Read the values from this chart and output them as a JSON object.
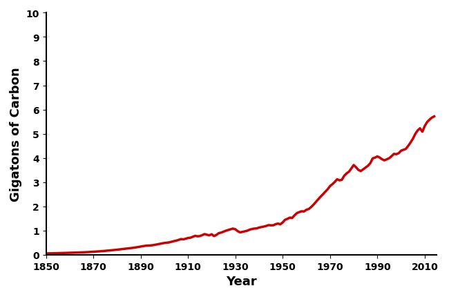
{
  "xlabel": "Year",
  "ylabel": "Gigatons of Carbon",
  "line_color": "#cc0000",
  "line_width": 2.5,
  "xlim": [
    1850,
    2015
  ],
  "ylim": [
    0,
    10
  ],
  "xticks": [
    1850,
    1870,
    1890,
    1910,
    1930,
    1950,
    1970,
    1990,
    2010
  ],
  "yticks": [
    0,
    1,
    2,
    3,
    4,
    5,
    6,
    7,
    8,
    9,
    10
  ],
  "years": [
    1850,
    1851,
    1852,
    1853,
    1854,
    1855,
    1856,
    1857,
    1858,
    1859,
    1860,
    1861,
    1862,
    1863,
    1864,
    1865,
    1866,
    1867,
    1868,
    1869,
    1870,
    1871,
    1872,
    1873,
    1874,
    1875,
    1876,
    1877,
    1878,
    1879,
    1880,
    1881,
    1882,
    1883,
    1884,
    1885,
    1886,
    1887,
    1888,
    1889,
    1890,
    1891,
    1892,
    1893,
    1894,
    1895,
    1896,
    1897,
    1898,
    1899,
    1900,
    1901,
    1902,
    1903,
    1904,
    1905,
    1906,
    1907,
    1908,
    1909,
    1910,
    1911,
    1912,
    1913,
    1914,
    1915,
    1916,
    1917,
    1918,
    1919,
    1920,
    1921,
    1922,
    1923,
    1924,
    1925,
    1926,
    1927,
    1928,
    1929,
    1930,
    1931,
    1932,
    1933,
    1934,
    1935,
    1936,
    1937,
    1938,
    1939,
    1940,
    1941,
    1942,
    1943,
    1944,
    1945,
    1946,
    1947,
    1948,
    1949,
    1950,
    1951,
    1952,
    1953,
    1954,
    1955,
    1956,
    1957,
    1958,
    1959,
    1960,
    1961,
    1962,
    1963,
    1964,
    1965,
    1966,
    1967,
    1968,
    1969,
    1970,
    1971,
    1972,
    1973,
    1974,
    1975,
    1976,
    1977,
    1978,
    1979,
    1980,
    1981,
    1982,
    1983,
    1984,
    1985,
    1986,
    1987,
    1988,
    1989,
    1990,
    1991,
    1992,
    1993,
    1994,
    1995,
    1996,
    1997,
    1998,
    1999,
    2000,
    2001,
    2002,
    2003,
    2004,
    2005,
    2006,
    2007,
    2008,
    2009,
    2010,
    2011,
    2012,
    2013,
    2014
  ],
  "emissions": [
    0.054,
    0.057,
    0.059,
    0.061,
    0.063,
    0.065,
    0.068,
    0.071,
    0.074,
    0.077,
    0.081,
    0.084,
    0.087,
    0.09,
    0.094,
    0.098,
    0.102,
    0.107,
    0.112,
    0.118,
    0.123,
    0.13,
    0.137,
    0.144,
    0.152,
    0.161,
    0.17,
    0.179,
    0.188,
    0.198,
    0.209,
    0.22,
    0.232,
    0.244,
    0.255,
    0.264,
    0.275,
    0.289,
    0.305,
    0.32,
    0.335,
    0.353,
    0.371,
    0.38,
    0.384,
    0.395,
    0.41,
    0.43,
    0.447,
    0.467,
    0.487,
    0.498,
    0.51,
    0.537,
    0.562,
    0.583,
    0.612,
    0.648,
    0.637,
    0.661,
    0.693,
    0.703,
    0.742,
    0.782,
    0.762,
    0.771,
    0.81,
    0.854,
    0.826,
    0.801,
    0.847,
    0.773,
    0.82,
    0.893,
    0.915,
    0.955,
    0.993,
    1.024,
    1.053,
    1.082,
    1.053,
    0.975,
    0.925,
    0.945,
    0.968,
    0.993,
    1.035,
    1.064,
    1.081,
    1.088,
    1.124,
    1.143,
    1.164,
    1.189,
    1.224,
    1.217,
    1.218,
    1.261,
    1.289,
    1.258,
    1.335,
    1.445,
    1.484,
    1.533,
    1.521,
    1.628,
    1.72,
    1.762,
    1.797,
    1.787,
    1.858,
    1.889,
    1.971,
    2.068,
    2.178,
    2.287,
    2.401,
    2.499,
    2.605,
    2.706,
    2.838,
    2.916,
    3.01,
    3.12,
    3.073,
    3.097,
    3.265,
    3.361,
    3.432,
    3.566,
    3.706,
    3.613,
    3.504,
    3.459,
    3.531,
    3.605,
    3.674,
    3.781,
    3.979,
    4.014,
    4.063,
    4.015,
    3.943,
    3.901,
    3.944,
    3.989,
    4.074,
    4.168,
    4.154,
    4.196,
    4.299,
    4.335,
    4.372,
    4.495,
    4.637,
    4.791,
    4.991,
    5.134,
    5.225,
    5.082,
    5.318,
    5.48,
    5.58,
    5.665,
    5.716
  ]
}
